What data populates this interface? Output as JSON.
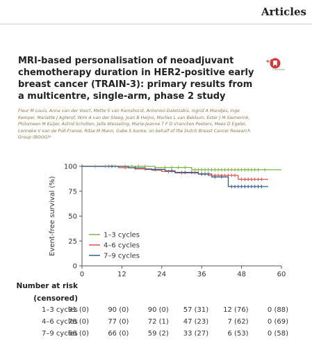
{
  "header": {
    "section": "Articles"
  },
  "article": {
    "title": "MRI-based personalisation of neoadjuvant chemotherapy duration in HER2-positive early breast cancer (TRAIN-3): primary results from a multicentre, single-arm, phase 2 study",
    "authors": "Fleur M Louis, Anna van der Voort, Mette S van Ramshorst, Antonios Daletzakis, Ingrid A Mandjes, Inge Kemper, Mariette J Agterof, Wim A van der Steeg, Joan B Heijns, Marlies L van Bekkum, Ester J M Siemerink, Philomeen M Kuijer, Astrid Scholten, Jelle Wesseling, Marie-Jeanne T F D Vrancken Peeters, Mees D Egeler, Lonneke V van de Poll-Franse, Ritse M Mann, Gabe S Sonke, on behalf of the Dutch Breast Cancer Research Group (BOOG)*",
    "crossmark_label": "CrossMark"
  },
  "chart_data": {
    "type": "line",
    "subtype": "kaplan-meier",
    "title": "",
    "xlabel": "",
    "ylabel": "Event-free survival (%)",
    "xlim": [
      0,
      60
    ],
    "ylim": [
      0,
      100
    ],
    "xticks": [
      0,
      12,
      24,
      36,
      48,
      60
    ],
    "yticks": [
      0,
      25,
      50,
      75,
      100
    ],
    "grid": false,
    "legend_position": "bottom-left",
    "series": [
      {
        "name": "1–3 cycles",
        "color": "#7cb342",
        "steps": [
          [
            0,
            100
          ],
          [
            22,
            100
          ],
          [
            22,
            98.9
          ],
          [
            33,
            98.9
          ],
          [
            33,
            96.6
          ],
          [
            60,
            96.6
          ]
        ],
        "censor_x": [
          4,
          7,
          10,
          13,
          15,
          17,
          19,
          25,
          27,
          29,
          31,
          34,
          35,
          36,
          37,
          38,
          39,
          40,
          41,
          42,
          43,
          44,
          45,
          46,
          47,
          48,
          49,
          50,
          51,
          52,
          53,
          55
        ]
      },
      {
        "name": "4–6 cycles",
        "color": "#d9534f",
        "steps": [
          [
            0,
            100
          ],
          [
            11,
            100
          ],
          [
            11,
            98.7
          ],
          [
            16,
            98.7
          ],
          [
            16,
            97.4
          ],
          [
            21,
            97.4
          ],
          [
            21,
            96.1
          ],
          [
            24,
            96.1
          ],
          [
            24,
            94.8
          ],
          [
            28,
            94.8
          ],
          [
            28,
            93.5
          ],
          [
            35,
            93.5
          ],
          [
            35,
            92.2
          ],
          [
            38,
            92.2
          ],
          [
            38,
            90.9
          ],
          [
            47,
            90.9
          ],
          [
            47,
            87.0
          ],
          [
            56,
            87.0
          ]
        ],
        "censor_x": [
          8,
          13,
          19,
          26,
          30,
          34,
          36,
          37,
          39,
          40,
          41,
          42,
          43,
          44,
          45,
          46,
          48,
          49,
          50,
          51,
          52,
          53,
          54
        ]
      },
      {
        "name": "7–9 cycles",
        "color": "#2f5d8c",
        "steps": [
          [
            0,
            100
          ],
          [
            14,
            100
          ],
          [
            14,
            98.5
          ],
          [
            19,
            98.5
          ],
          [
            19,
            97.0
          ],
          [
            25,
            97.0
          ],
          [
            25,
            95.5
          ],
          [
            28,
            95.5
          ],
          [
            28,
            93.9
          ],
          [
            35,
            93.9
          ],
          [
            35,
            92.4
          ],
          [
            39,
            92.4
          ],
          [
            39,
            89.4
          ],
          [
            44,
            89.4
          ],
          [
            44,
            79.7
          ],
          [
            56,
            79.7
          ]
        ],
        "censor_x": [
          9,
          16,
          22,
          27,
          31,
          33,
          36,
          37,
          38,
          40,
          42,
          45,
          46,
          47,
          48,
          49,
          50,
          51,
          52,
          53,
          54
        ]
      }
    ],
    "risk_table": {
      "title": "Number at risk",
      "subtitle": "(censored)",
      "timepoints": [
        0,
        12,
        24,
        36,
        48,
        60
      ],
      "rows": [
        {
          "label": "1–3 cycles",
          "values": [
            "91 (0)",
            "90 (0)",
            "90 (0)",
            "57 (31)",
            "12 (76)",
            "0 (88)"
          ]
        },
        {
          "label": "4–6 cycles",
          "values": [
            "78 (0)",
            "77 (0)",
            "72 (1)",
            "47 (23)",
            "7 (62)",
            "0 (69)"
          ]
        },
        {
          "label": "7–9 cycles",
          "values": [
            "66 (0)",
            "66 (0)",
            "59 (2)",
            "33 (27)",
            "6 (53)",
            "0 (58)"
          ]
        }
      ]
    }
  }
}
